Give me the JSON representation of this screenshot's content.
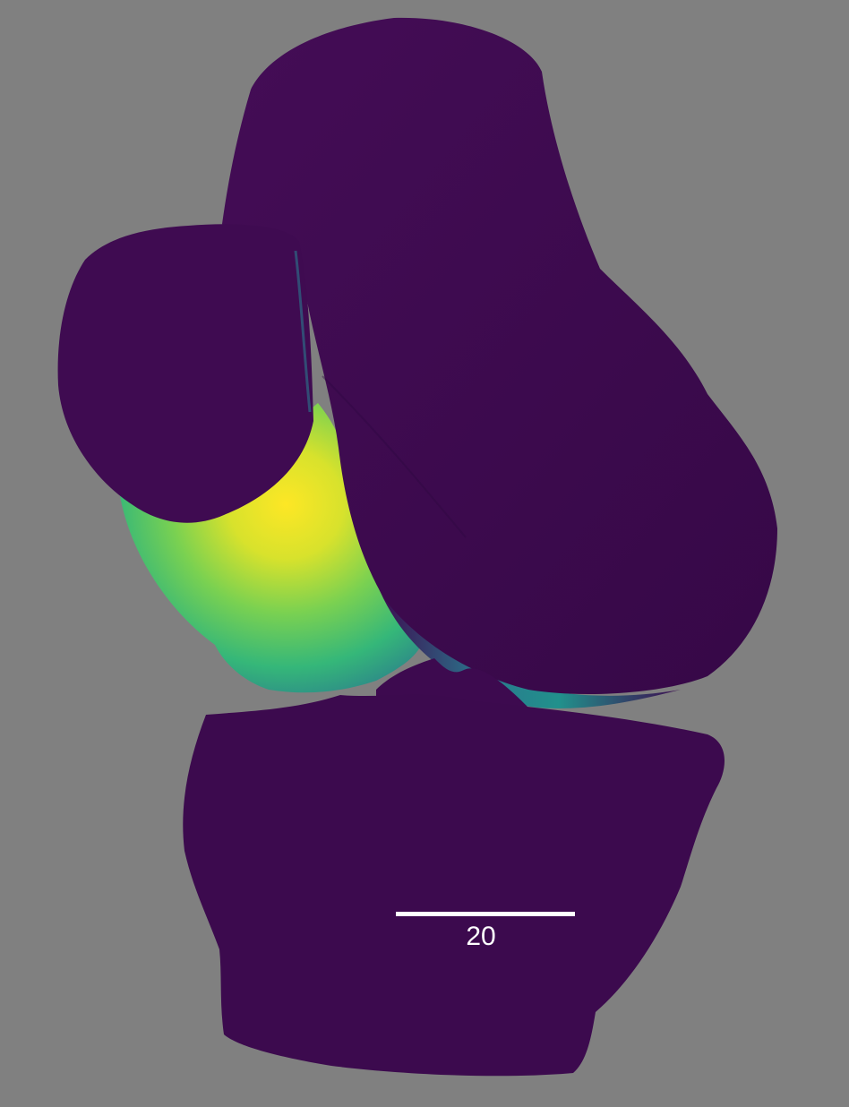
{
  "viewport": {
    "background_color": "#808080"
  },
  "model": {
    "base_color": "#3d0a4f",
    "highlight_colors": [
      "#fde725",
      "#bddf26",
      "#7ad151",
      "#35b779",
      "#21918c",
      "#2a788e"
    ]
  },
  "scale_bar": {
    "label": "20",
    "color": "#ffffff"
  }
}
